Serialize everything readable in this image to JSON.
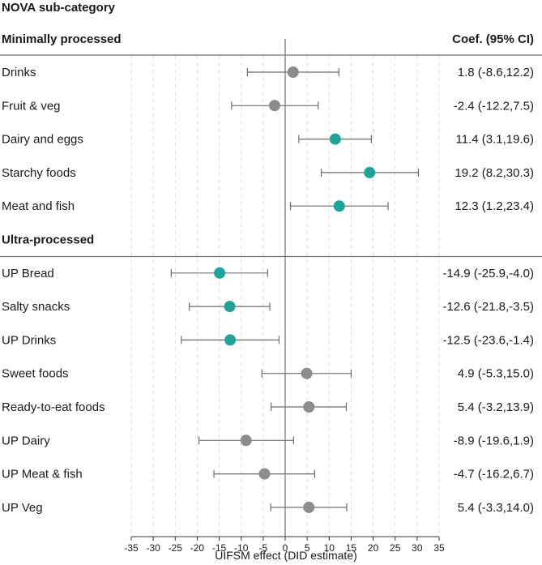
{
  "chart_data": {
    "type": "forest",
    "title": "NOVA sub-category",
    "coef_header": "Coef. (95% CI)",
    "xlabel": "UIFSM effect (DID estimate)",
    "xlim": [
      -35,
      35
    ],
    "xticks": [
      -35,
      -30,
      -25,
      -20,
      -15,
      -10,
      -5,
      0,
      5,
      10,
      15,
      20,
      25,
      30,
      35
    ],
    "colors": {
      "significant": "#21a39a",
      "nonsignificant": "#8c8c8c",
      "line": "#6e6e6e",
      "grid": "#dcdcdc"
    },
    "groups": [
      {
        "name": "Minimally processed",
        "rows": [
          {
            "label": "Drinks",
            "est": 1.8,
            "lo": -8.6,
            "hi": 12.2,
            "sig": false,
            "coef": "1.8 (-8.6,12.2)"
          },
          {
            "label": "Fruit & veg",
            "est": -2.4,
            "lo": -12.2,
            "hi": 7.5,
            "sig": false,
            "coef": "-2.4 (-12.2,7.5)"
          },
          {
            "label": "Dairy and eggs",
            "est": 11.4,
            "lo": 3.1,
            "hi": 19.6,
            "sig": true,
            "coef": "11.4 (3.1,19.6)"
          },
          {
            "label": "Starchy foods",
            "est": 19.2,
            "lo": 8.2,
            "hi": 30.3,
            "sig": true,
            "coef": "19.2 (8.2,30.3)"
          },
          {
            "label": "Meat and fish",
            "est": 12.3,
            "lo": 1.2,
            "hi": 23.4,
            "sig": true,
            "coef": "12.3 (1.2,23.4)"
          }
        ]
      },
      {
        "name": "Ultra-processed",
        "rows": [
          {
            "label": "UP Bread",
            "est": -14.9,
            "lo": -25.9,
            "hi": -4.0,
            "sig": true,
            "coef": "-14.9 (-25.9,-4.0)"
          },
          {
            "label": "Salty snacks",
            "est": -12.6,
            "lo": -21.8,
            "hi": -3.5,
            "sig": true,
            "coef": "-12.6 (-21.8,-3.5)"
          },
          {
            "label": "UP Drinks",
            "est": -12.5,
            "lo": -23.6,
            "hi": -1.4,
            "sig": true,
            "coef": "-12.5 (-23.6,-1.4)"
          },
          {
            "label": "Sweet foods",
            "est": 4.9,
            "lo": -5.3,
            "hi": 15.0,
            "sig": false,
            "coef": "4.9 (-5.3,15.0)"
          },
          {
            "label": "Ready-to-eat foods",
            "est": 5.4,
            "lo": -3.2,
            "hi": 13.9,
            "sig": false,
            "coef": "5.4 (-3.2,13.9)"
          },
          {
            "label": "UP Dairy",
            "est": -8.9,
            "lo": -19.6,
            "hi": 1.9,
            "sig": false,
            "coef": "-8.9 (-19.6,1.9)"
          },
          {
            "label": "UP Meat & fish",
            "est": -4.7,
            "lo": -16.2,
            "hi": 6.7,
            "sig": false,
            "coef": "-4.7 (-16.2,6.7)"
          },
          {
            "label": "UP Veg",
            "est": 5.4,
            "lo": -3.3,
            "hi": 14.0,
            "sig": false,
            "coef": "5.4 (-3.3,14.0)"
          }
        ]
      }
    ]
  }
}
